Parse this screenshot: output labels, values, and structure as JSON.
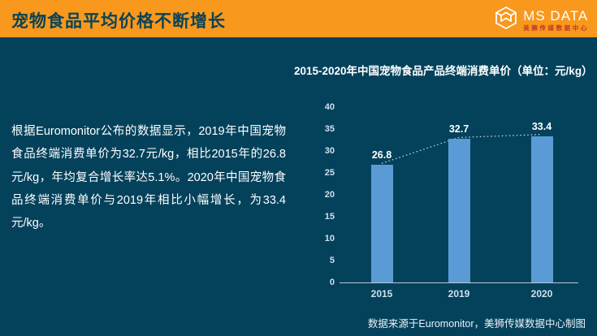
{
  "header": {
    "title": "宠物食品平均价格不断增长",
    "logo": {
      "name": "MS DATA",
      "subtitle": "美狮传媒数据中心"
    }
  },
  "body": {
    "paragraph": "根据Euromonitor公布的数据显示，2019年中国宠物食品终端消费单价为32.7元/kg，相比2015年的26.8元/kg，年均复合增长率达5.1%。2020年中国宠物食品终端消费单价与2019年相比小幅增长，为33.4元/kg。"
  },
  "chart_data": {
    "type": "bar",
    "title": "2015-2020年中国宠物食品产品终端消费单价（单位：元/kg）",
    "categories": [
      "2015",
      "2019",
      "2020"
    ],
    "values": [
      26.8,
      32.7,
      33.4
    ],
    "data_labels": [
      "26.8",
      "32.7",
      "33.4"
    ],
    "ylabel": "",
    "xlabel": "",
    "ylim": [
      0,
      40
    ],
    "yticks": [
      0,
      5,
      10,
      15,
      20,
      25,
      30,
      35,
      40
    ],
    "grid": false,
    "legend": "none",
    "trendline": "dotted-between-bar-tops",
    "bar_color": "#5B9BD5"
  },
  "footer": {
    "source": "数据来源于Euromonitor，美狮传媒数据中心制图"
  },
  "colors": {
    "header_bg": "#F8981D",
    "body_bg": "#04425C",
    "title_text": "#0B4355",
    "bar": "#5B9BD5",
    "axis_text": "#CFE0EE",
    "logo_subtitle": "#BE3A26"
  }
}
